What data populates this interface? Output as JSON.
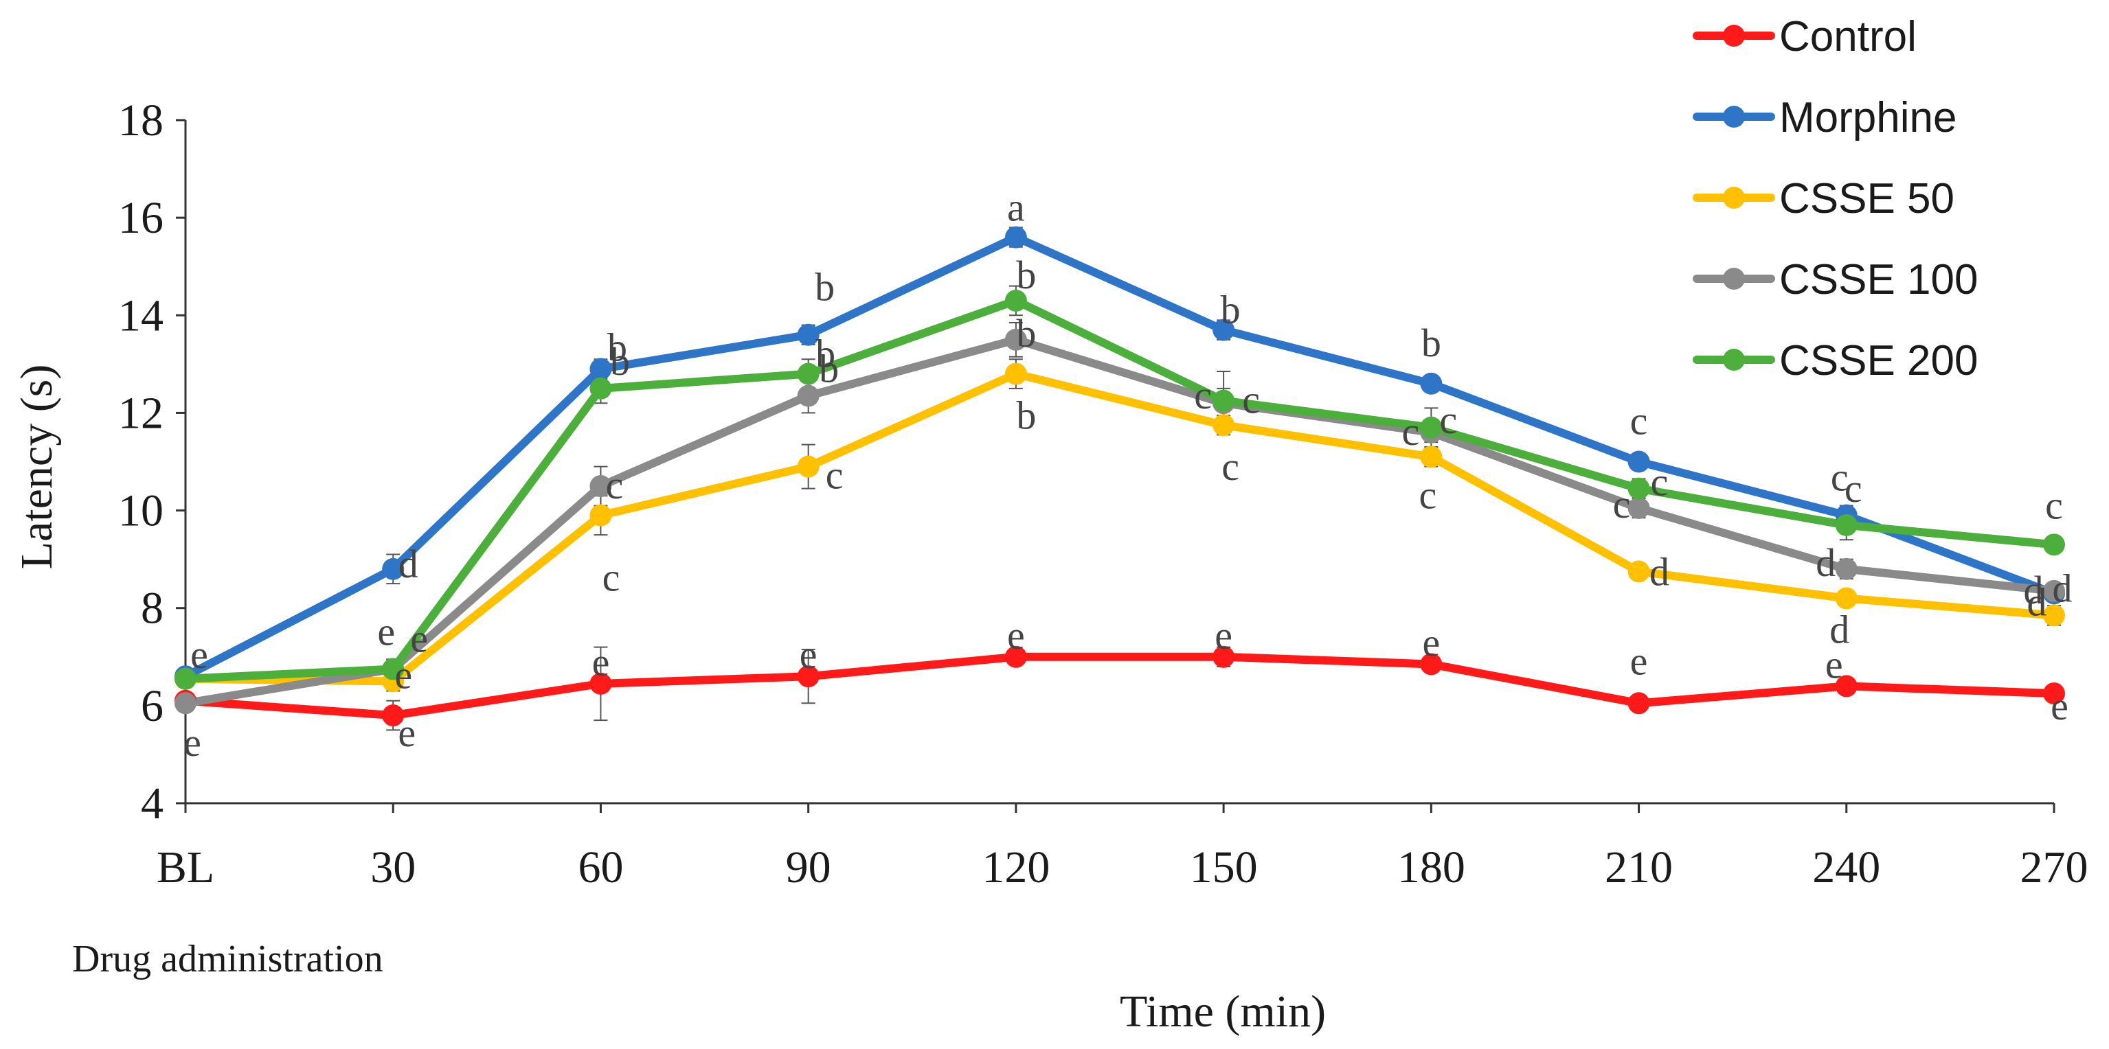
{
  "chart_data": {
    "type": "line",
    "xlabel": "Time (min)",
    "ylabel": "Latency (s)",
    "categories": [
      "BL",
      "30",
      "60",
      "90",
      "120",
      "150",
      "180",
      "210",
      "240",
      "270"
    ],
    "ylim": [
      4,
      18
    ],
    "yticks": [
      "4",
      "6",
      "8",
      "10",
      "12",
      "14",
      "16",
      "18"
    ],
    "grid": false,
    "legend_position": "top-right",
    "note": "Drug administration",
    "series": [
      {
        "name": "Control",
        "color": "#ff1a1a",
        "values": [
          6.1,
          5.8,
          6.45,
          6.6,
          7.0,
          7.0,
          6.85,
          6.05,
          6.4,
          6.25
        ],
        "errors": [
          0.1,
          0.3,
          0.75,
          0.55,
          0.15,
          0.2,
          0.15,
          0.1,
          0.15,
          0.15
        ],
        "labels": [
          "e",
          "e",
          "e",
          "e",
          "e",
          "e",
          "e",
          "e",
          "e",
          "e"
        ]
      },
      {
        "name": "Morphine",
        "color": "#2e75c8",
        "values": [
          6.6,
          8.8,
          12.9,
          13.6,
          15.6,
          13.7,
          12.6,
          11.0,
          9.9,
          8.3
        ],
        "errors": [
          0.1,
          0.3,
          0.2,
          0.2,
          0.2,
          0.2,
          0.15,
          0.15,
          0.2,
          0.15
        ],
        "labels": [
          "e",
          "d",
          "b",
          "b",
          "a",
          "b",
          "b",
          "c",
          "c",
          "d"
        ]
      },
      {
        "name": "CSSE 50",
        "color": "#ffc000",
        "values": [
          6.55,
          6.5,
          9.9,
          10.9,
          12.8,
          11.75,
          11.1,
          8.75,
          8.2,
          7.85
        ],
        "errors": [
          0.1,
          0.2,
          0.4,
          0.45,
          0.3,
          0.2,
          0.2,
          0.15,
          0.15,
          0.2
        ],
        "labels": [
          "",
          "e",
          "c",
          "c",
          "b",
          "c",
          "c",
          "d",
          "d",
          "d"
        ]
      },
      {
        "name": "CSSE 100",
        "color": "#8a8a8a",
        "values": [
          6.05,
          6.75,
          10.5,
          12.35,
          13.5,
          12.2,
          11.6,
          10.05,
          8.8,
          8.35
        ],
        "errors": [
          0.1,
          0.2,
          0.4,
          0.35,
          0.35,
          0.3,
          0.2,
          0.2,
          0.2,
          0.15
        ],
        "labels": [
          "",
          "e",
          "c",
          "b",
          "b",
          "c",
          "c",
          "c",
          "d",
          "d"
        ]
      },
      {
        "name": "CSSE 200",
        "color": "#4caf3c",
        "values": [
          6.55,
          6.75,
          12.5,
          12.8,
          14.3,
          12.25,
          11.7,
          10.45,
          9.7,
          9.3
        ],
        "errors": [
          0.1,
          0.2,
          0.3,
          0.3,
          0.3,
          0.6,
          0.4,
          0.2,
          0.3,
          0.15
        ],
        "labels": [
          "",
          "e",
          "b",
          "b",
          "b",
          "c",
          "c",
          "c",
          "c",
          "c"
        ]
      }
    ]
  }
}
